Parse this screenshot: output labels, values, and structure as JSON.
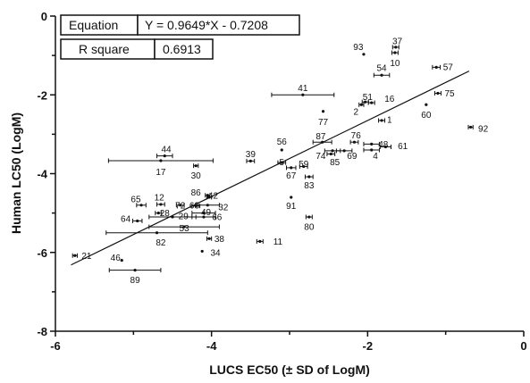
{
  "chart_data": {
    "type": "scatter",
    "xlabel": "LUCS EC50 (± SD of LogM)",
    "ylabel": "Human LC50 (LogM)",
    "xlim": [
      -6,
      0
    ],
    "ylim": [
      -8,
      0
    ],
    "x_ticks": [
      "-6",
      "-4",
      "-2",
      "0"
    ],
    "y_ticks": [
      "0",
      "-2",
      "-4",
      "-6",
      "-8"
    ],
    "grid": false,
    "fit_line": {
      "slope": 0.9649,
      "intercept": -0.7208,
      "x_range": [
        -5.8,
        -0.7
      ]
    },
    "stats_table": {
      "equation_label": "Equation",
      "equation_value": "Y = 0.9649*X - 0.7208",
      "r2_label": "R square",
      "r2_value": "0.6913"
    },
    "points": [
      {
        "id": "93",
        "x": -2.05,
        "y": -0.97,
        "sd": 0,
        "lx": -2.12,
        "ly": -0.78
      },
      {
        "id": "37",
        "x": -1.64,
        "y": -0.79,
        "sd": 0.04,
        "lx": -1.62,
        "ly": -0.64
      },
      {
        "id": "10",
        "x": -1.65,
        "y": -0.93,
        "sd": 0.04,
        "lx": -1.65,
        "ly": -1.19
      },
      {
        "id": "54",
        "x": -1.82,
        "y": -1.5,
        "sd": 0.1,
        "lx": -1.82,
        "ly": -1.32
      },
      {
        "id": "57",
        "x": -1.12,
        "y": -1.3,
        "sd": 0.05,
        "lx": -0.97,
        "ly": -1.29
      },
      {
        "id": "41",
        "x": -2.83,
        "y": -2.0,
        "sd": 0.4,
        "lx": -2.83,
        "ly": -1.83
      },
      {
        "id": "75",
        "x": -1.1,
        "y": -1.96,
        "sd": 0.04,
        "lx": -0.95,
        "ly": -1.96
      },
      {
        "id": "51",
        "x": -2.03,
        "y": -2.18,
        "sd": 0.04,
        "lx": -2.0,
        "ly": -2.05
      },
      {
        "id": "16",
        "x": -1.95,
        "y": -2.2,
        "sd": 0.04,
        "lx": -1.72,
        "ly": -2.1
      },
      {
        "id": "2",
        "x": -2.08,
        "y": -2.25,
        "sd": 0.03,
        "lx": -2.15,
        "ly": -2.42
      },
      {
        "id": "60",
        "x": -1.25,
        "y": -2.25,
        "sd": 0,
        "lx": -1.25,
        "ly": -2.5
      },
      {
        "id": "77",
        "x": -2.57,
        "y": -2.42,
        "sd": 0,
        "lx": -2.57,
        "ly": -2.68
      },
      {
        "id": "1",
        "x": -1.82,
        "y": -2.65,
        "sd": 0.04,
        "lx": -1.72,
        "ly": -2.63
      },
      {
        "id": "92",
        "x": -0.68,
        "y": -2.82,
        "sd": 0.03,
        "lx": -0.52,
        "ly": -2.85
      },
      {
        "id": "56",
        "x": -3.1,
        "y": -3.4,
        "sd": 0,
        "lx": -3.1,
        "ly": -3.18
      },
      {
        "id": "87",
        "x": -2.58,
        "y": -3.2,
        "sd": 0.12,
        "lx": -2.6,
        "ly": -3.05
      },
      {
        "id": "76",
        "x": -2.17,
        "y": -3.2,
        "sd": 0.05,
        "lx": -2.15,
        "ly": -3.03
      },
      {
        "id": "48",
        "x": -1.95,
        "y": -3.25,
        "sd": 0.1,
        "lx": -1.8,
        "ly": -3.25
      },
      {
        "id": "61",
        "x": -1.77,
        "y": -3.32,
        "sd": 0.07,
        "lx": -1.55,
        "ly": -3.3
      },
      {
        "id": "74",
        "x": -2.45,
        "y": -3.42,
        "sd": 0.1,
        "lx": -2.6,
        "ly": -3.55
      },
      {
        "id": "69",
        "x": -2.3,
        "y": -3.42,
        "sd": 0.1,
        "lx": -2.2,
        "ly": -3.55
      },
      {
        "id": "4",
        "x": -1.95,
        "y": -3.4,
        "sd": 0.1,
        "lx": -1.9,
        "ly": -3.55
      },
      {
        "id": "85",
        "x": -2.47,
        "y": -3.5,
        "sd": 0.05,
        "lx": -2.42,
        "ly": -3.7
      },
      {
        "id": "44",
        "x": -4.6,
        "y": -3.55,
        "sd": 0.1,
        "lx": -4.58,
        "ly": -3.38
      },
      {
        "id": "17",
        "x": -4.65,
        "y": -3.67,
        "sd": 0.67,
        "lx": -4.65,
        "ly": -3.95
      },
      {
        "id": "39",
        "x": -3.5,
        "y": -3.68,
        "sd": 0.05,
        "lx": -3.5,
        "ly": -3.5
      },
      {
        "id": "5",
        "x": -3.1,
        "y": -3.72,
        "sd": 0.05,
        "lx": -3.1,
        "ly": -3.7
      },
      {
        "id": "59",
        "x": -2.82,
        "y": -3.82,
        "sd": 0.05,
        "lx": -2.82,
        "ly": -3.75
      },
      {
        "id": "30",
        "x": -4.2,
        "y": -3.8,
        "sd": 0.03,
        "lx": -4.2,
        "ly": -4.05
      },
      {
        "id": "67",
        "x": -2.98,
        "y": -3.85,
        "sd": 0.06,
        "lx": -2.98,
        "ly": -4.05
      },
      {
        "id": "83",
        "x": -2.75,
        "y": -4.08,
        "sd": 0.05,
        "lx": -2.75,
        "ly": -4.3
      },
      {
        "id": "91",
        "x": -2.98,
        "y": -4.6,
        "sd": 0,
        "lx": -2.98,
        "ly": -4.82
      },
      {
        "id": "86",
        "x": -4.05,
        "y": -4.55,
        "sd": 0.03,
        "lx": -4.2,
        "ly": -4.48
      },
      {
        "id": "42",
        "x": -4.03,
        "y": -4.6,
        "sd": 0.03,
        "lx": -3.98,
        "ly": -4.55
      },
      {
        "id": "65",
        "x": -4.9,
        "y": -4.8,
        "sd": 0.06,
        "lx": -4.97,
        "ly": -4.65
      },
      {
        "id": "12",
        "x": -4.65,
        "y": -4.78,
        "sd": 0.05,
        "lx": -4.67,
        "ly": -4.6
      },
      {
        "id": "72",
        "x": -4.4,
        "y": -4.8,
        "sd": 0.05,
        "lx": -4.4,
        "ly": -4.8
      },
      {
        "id": "63",
        "x": -4.2,
        "y": -4.82,
        "sd": 0.05,
        "lx": -4.22,
        "ly": -4.8
      },
      {
        "id": "32",
        "x": -4.05,
        "y": -4.8,
        "sd": 0.15,
        "lx": -3.85,
        "ly": -4.85
      },
      {
        "id": "28",
        "x": -4.68,
        "y": -5.0,
        "sd": 0.04,
        "lx": -4.6,
        "ly": -5.0
      },
      {
        "id": "49",
        "x": -4.1,
        "y": -5.0,
        "sd": 0.15,
        "lx": -4.07,
        "ly": -4.98
      },
      {
        "id": "29",
        "x": -4.5,
        "y": -5.1,
        "sd": 0.3,
        "lx": -4.36,
        "ly": -5.08
      },
      {
        "id": "66",
        "x": -4.1,
        "y": -5.1,
        "sd": 0.15,
        "lx": -3.93,
        "ly": -5.1
      },
      {
        "id": "64",
        "x": -4.95,
        "y": -5.2,
        "sd": 0.06,
        "lx": -5.1,
        "ly": -5.15
      },
      {
        "id": "53",
        "x": -4.35,
        "y": -5.35,
        "sd": 0.45,
        "lx": -4.35,
        "ly": -5.38
      },
      {
        "id": "82",
        "x": -4.7,
        "y": -5.5,
        "sd": 0.65,
        "lx": -4.65,
        "ly": -5.75
      },
      {
        "id": "38",
        "x": -4.03,
        "y": -5.65,
        "sd": 0.03,
        "lx": -3.9,
        "ly": -5.65
      },
      {
        "id": "11",
        "x": -3.38,
        "y": -5.72,
        "sd": 0.04,
        "lx": -3.15,
        "ly": -5.72
      },
      {
        "id": "34",
        "x": -4.12,
        "y": -5.97,
        "sd": 0,
        "lx": -3.95,
        "ly": -6.0
      },
      {
        "id": "80",
        "x": -2.75,
        "y": -5.1,
        "sd": 0.04,
        "lx": -2.75,
        "ly": -5.35
      },
      {
        "id": "21",
        "x": -5.75,
        "y": -6.08,
        "sd": 0.03,
        "lx": -5.6,
        "ly": -6.08
      },
      {
        "id": "46",
        "x": -5.15,
        "y": -6.2,
        "sd": 0,
        "lx": -5.23,
        "ly": -6.13
      },
      {
        "id": "89",
        "x": -4.98,
        "y": -6.45,
        "sd": 0.33,
        "lx": -4.98,
        "ly": -6.7
      }
    ]
  }
}
